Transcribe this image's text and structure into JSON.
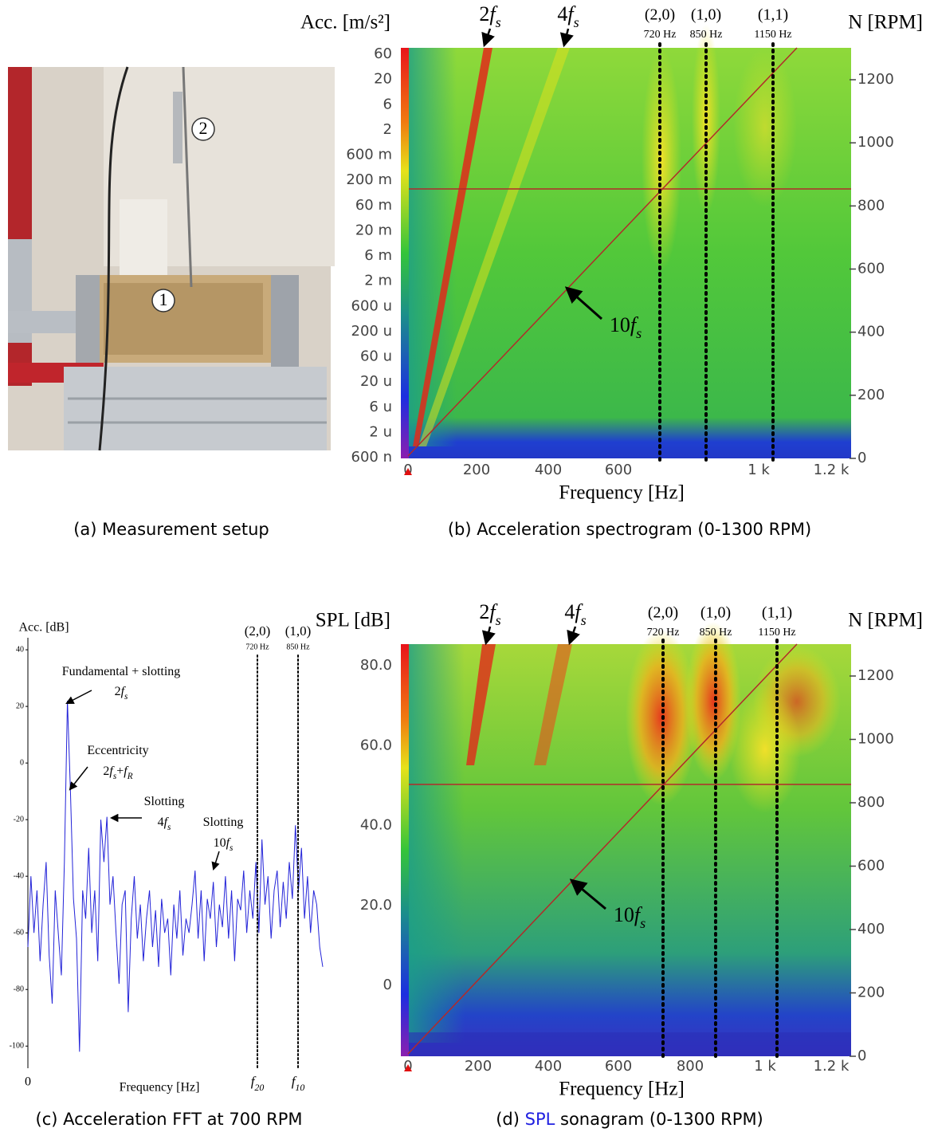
{
  "panels": [
    {
      "caption": [
        {
          "text": "(a) Measurement setup"
        }
      ],
      "markers": [
        "1",
        "2"
      ]
    },
    {
      "caption": [
        {
          "text": "(b) Acceleration spectrogram (0-1300 RPM)"
        }
      ],
      "y_label": "Acc. [m/s²]",
      "y2_label": "N [RPM]",
      "x_label": "Frequency [Hz]",
      "y_ticks": [
        "60",
        "20",
        "6",
        "2",
        "600 m",
        "200 m",
        "60 m",
        "20 m",
        "6 m",
        "2 m",
        "600 u",
        "200 u",
        "60 u",
        "20 u",
        "6 u",
        "2 u",
        "600 n"
      ],
      "y2_ticks": [
        "1200",
        "1000",
        "800",
        "600",
        "400",
        "200",
        "0"
      ],
      "x_ticks": [
        "0",
        "200",
        "400",
        "600",
        "1 k",
        "1.2 k"
      ],
      "harmonics": [
        [
          {
            "text": "2"
          },
          {
            "text": "f",
            "style": "i"
          },
          {
            "text": "s",
            "style": "sub"
          }
        ],
        [
          {
            "text": "4"
          },
          {
            "text": "f",
            "style": "i"
          },
          {
            "text": "s",
            "style": "sub"
          }
        ]
      ],
      "modes": [
        {
          "label": "(2,0)",
          "freq": "720 Hz"
        },
        {
          "label": "(1,0)",
          "freq": "850 Hz"
        },
        {
          "label": "(1,1)",
          "freq": "1150 Hz"
        }
      ],
      "diagonal": [
        {
          "text": "10"
        },
        {
          "text": "f",
          "style": "i"
        },
        {
          "text": "s",
          "style": "sub"
        }
      ]
    },
    {
      "caption": [
        {
          "text": "(c) Acceleration FFT at 700 RPM"
        }
      ],
      "type": "line",
      "y_label": "Acc. [dB]",
      "x_label": "Frequency [Hz]",
      "x_origin": "0",
      "ylim": [
        -105,
        42
      ],
      "yticks": [
        40,
        20,
        0,
        -20,
        -40,
        -60,
        -80,
        -100
      ],
      "color": "#2323d8",
      "values": [
        -65,
        -40,
        -60,
        -45,
        -70,
        -50,
        -35,
        -68,
        -85,
        -45,
        -60,
        -75,
        -35,
        22,
        -10,
        -48,
        -62,
        -102,
        -45,
        -55,
        -30,
        -60,
        -45,
        -70,
        -20,
        -35,
        -19,
        -50,
        -40,
        -60,
        -78,
        -50,
        -45,
        -88,
        -55,
        -40,
        -62,
        -50,
        -70,
        -55,
        -45,
        -65,
        -52,
        -72,
        -48,
        -60,
        -55,
        -75,
        -50,
        -62,
        -45,
        -68,
        -55,
        -60,
        -50,
        -38,
        -62,
        -45,
        -70,
        -48,
        -55,
        -42,
        -65,
        -50,
        -58,
        -40,
        -62,
        -45,
        -70,
        -48,
        -52,
        -38,
        -60,
        -45,
        -55,
        -35,
        -60,
        -27,
        -50,
        -40,
        -62,
        -45,
        -38,
        -58,
        -42,
        -55,
        -35,
        -48,
        -22,
        -45,
        -30,
        -55,
        -40,
        -60,
        -45,
        -50,
        -65,
        -72
      ],
      "modes": [
        {
          "label": "(2,0)",
          "freq": "720 Hz"
        },
        {
          "label": "(1,0)",
          "freq": "850 Hz"
        }
      ],
      "markers": [
        [
          {
            "text": "f",
            "style": "i"
          },
          {
            "text": "20",
            "style": "sub"
          }
        ],
        [
          {
            "text": "f",
            "style": "i"
          },
          {
            "text": "10",
            "style": "sub"
          }
        ]
      ],
      "annotations": [
        {
          "lines": [
            [
              {
                "text": "Fundamental + slotting"
              }
            ],
            [
              {
                "text": "2"
              },
              {
                "text": "f",
                "style": "i"
              },
              {
                "text": "s",
                "style": "sub"
              }
            ]
          ]
        },
        {
          "lines": [
            [
              {
                "text": "Eccentricity"
              }
            ],
            [
              {
                "text": "2"
              },
              {
                "text": "f",
                "style": "i"
              },
              {
                "text": "s",
                "style": "sub"
              },
              {
                "text": "+"
              },
              {
                "text": "f",
                "style": "i"
              },
              {
                "text": "R",
                "style": "sub"
              }
            ]
          ]
        },
        {
          "lines": [
            [
              {
                "text": "Slotting"
              }
            ],
            [
              {
                "text": "4"
              },
              {
                "text": "f",
                "style": "i"
              },
              {
                "text": "s",
                "style": "sub"
              }
            ]
          ]
        },
        {
          "lines": [
            [
              {
                "text": "Slotting"
              }
            ],
            [
              {
                "text": "10"
              },
              {
                "text": "f",
                "style": "i"
              },
              {
                "text": "s",
                "style": "sub"
              }
            ]
          ]
        }
      ]
    },
    {
      "caption": [
        {
          "text": "(d) "
        },
        {
          "text": "SPL",
          "color": "#1f1fe0"
        },
        {
          "text": " sonagram (0-1300 RPM)"
        }
      ],
      "y_label": "SPL [dB]",
      "y2_label": "N [RPM]",
      "x_label": "Frequency [Hz]",
      "y_ticks": [
        "80.0",
        "60.0",
        "40.0",
        "20.0",
        "0"
      ],
      "y2_ticks": [
        "1200",
        "1000",
        "800",
        "600",
        "400",
        "200",
        "0"
      ],
      "x_ticks": [
        "0",
        "200",
        "400",
        "600",
        "800",
        "1 k",
        "1.2 k"
      ],
      "harmonics": [
        [
          {
            "text": "2"
          },
          {
            "text": "f",
            "style": "i"
          },
          {
            "text": "s",
            "style": "sub"
          }
        ],
        [
          {
            "text": "4"
          },
          {
            "text": "f",
            "style": "i"
          },
          {
            "text": "s",
            "style": "sub"
          }
        ]
      ],
      "modes": [
        {
          "label": "(2,0)",
          "freq": "720 Hz"
        },
        {
          "label": "(1,0)",
          "freq": "850 Hz"
        },
        {
          "label": "(1,1)",
          "freq": "1150 Hz"
        }
      ],
      "diagonal": [
        {
          "text": "10"
        },
        {
          "text": "f",
          "style": "i"
        },
        {
          "text": "s",
          "style": "sub"
        }
      ]
    }
  ]
}
